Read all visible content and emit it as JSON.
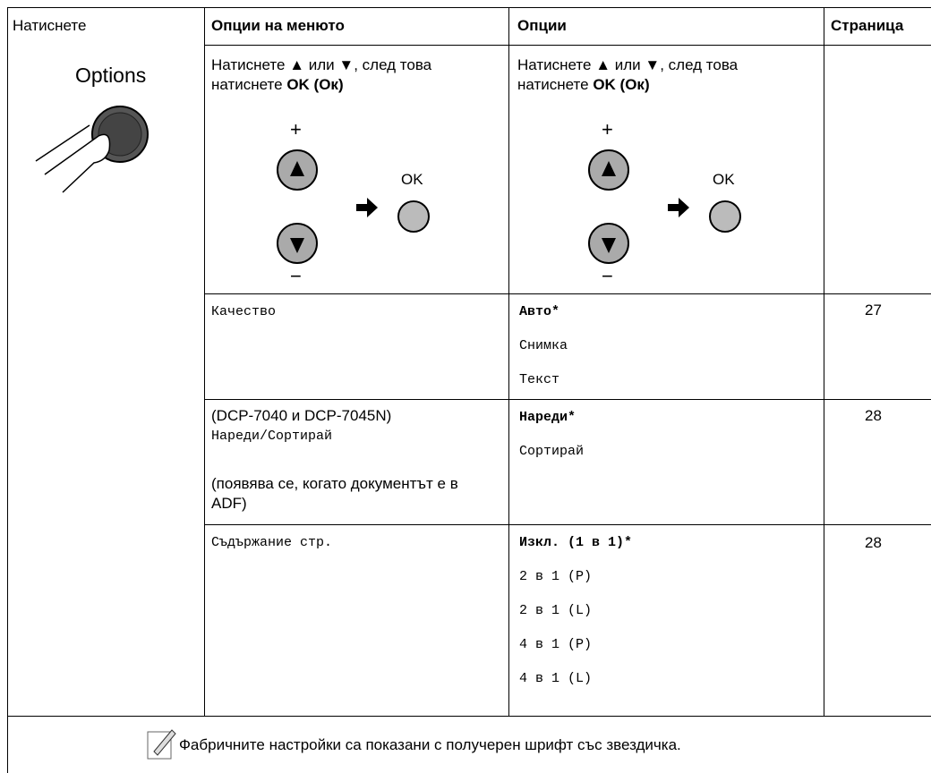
{
  "header": {
    "press": "Натиснете",
    "menu": "Опции на менюто",
    "options": "Опции",
    "page": "Страница"
  },
  "button": "Options",
  "instruction": {
    "text": "Натиснете ▲ или ▼, след това натиснете",
    "key": "OK (Ок)"
  },
  "diagram": {
    "plus": "+",
    "minus": "−",
    "ok": "OK"
  },
  "rows": [
    {
      "menu": "Качество",
      "options": [
        "Авто*",
        "Снимка",
        "Текст"
      ],
      "page": 27
    },
    {
      "model": "(DCP-7040 и DCP-7045N)",
      "menu": "Нареди/Сортирай",
      "condition": "(появява се, когато документът е в ADF)",
      "options": [
        "Нареди*",
        "Сортирай"
      ],
      "page": 28
    },
    {
      "menu": "Съдържание стр.",
      "options": [
        "Изкл. (1 в 1)*",
        "2 в 1 (P)",
        "2 в 1 (L)",
        "4 в 1 (P)",
        "4 в 1 (L)"
      ],
      "page": 28
    }
  ],
  "note": "Фабричните настройки са показани с получерен шрифт със звездичка."
}
